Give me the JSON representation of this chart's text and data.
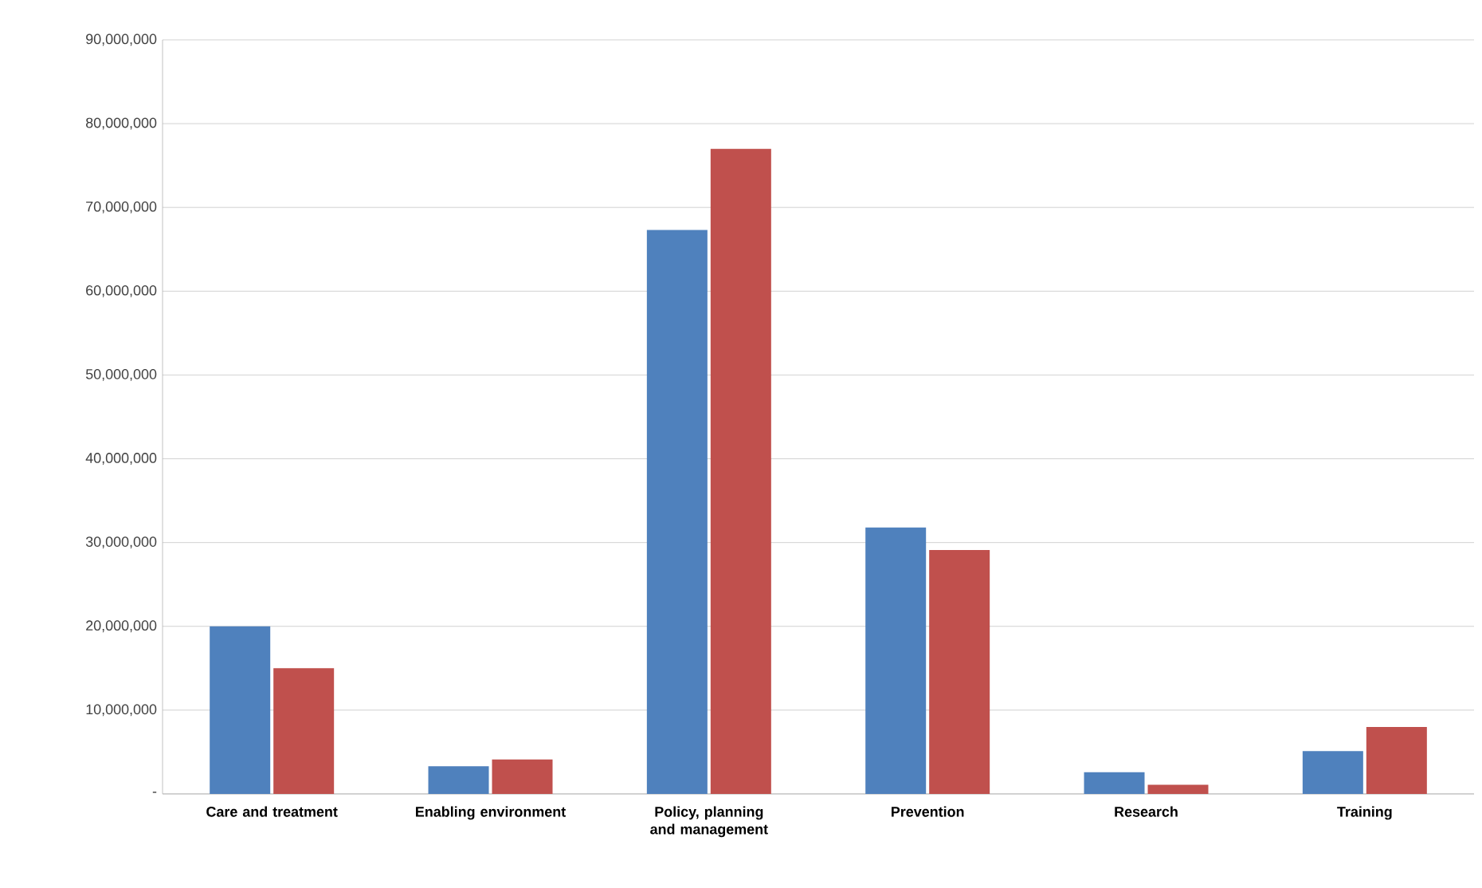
{
  "chart_data": {
    "type": "bar",
    "categories": [
      "Care and treatment",
      "Enabling environment",
      "Policy, planning and management",
      "Prevention",
      "Research",
      "Training"
    ],
    "series": [
      {
        "color": "#4f81bd",
        "values": [
          20000000,
          3300000,
          67300000,
          31800000,
          2600000,
          5100000
        ]
      },
      {
        "color": "#c0504d",
        "values": [
          15000000,
          4100000,
          77000000,
          29100000,
          1100000,
          8000000
        ]
      }
    ],
    "ylim": [
      0,
      90000000
    ],
    "yticks": [
      {
        "value": 0,
        "label": "-"
      },
      {
        "value": 10000000,
        "label": "10,000,000"
      },
      {
        "value": 20000000,
        "label": "20,000,000"
      },
      {
        "value": 30000000,
        "label": "30,000,000"
      },
      {
        "value": 40000000,
        "label": "40,000,000"
      },
      {
        "value": 50000000,
        "label": "50,000,000"
      },
      {
        "value": 60000000,
        "label": "60,000,000"
      },
      {
        "value": 70000000,
        "label": "70,000,000"
      },
      {
        "value": 80000000,
        "label": "80,000,000"
      },
      {
        "value": 90000000,
        "label": "90,000,000"
      }
    ],
    "grid": "y"
  }
}
